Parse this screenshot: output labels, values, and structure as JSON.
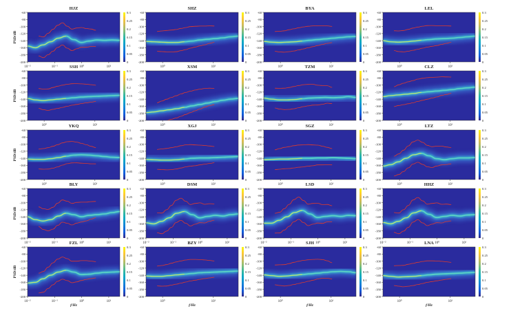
{
  "figure": {
    "ylabel": "PSD/dB",
    "xlabel": "f/Hz",
    "y_ticks": [
      "-60",
      "-80",
      "-100",
      "-120",
      "-140",
      "-160",
      "-180",
      "-200"
    ],
    "cbar_ticks": [
      "0.3",
      "0.25",
      "0.2",
      "0.15",
      "0.1",
      "0.05",
      "0"
    ],
    "colors": {
      "background": "#2a2b9e",
      "ridge": "#5fd6c4",
      "ridge_peak": "#e8e84a",
      "model_curves": "#e03a2c",
      "cbar_stops": [
        "#352a87",
        "#0f5cdd",
        "#1481d6",
        "#06a4ca",
        "#2eb7a4",
        "#87bf77",
        "#d1bb59",
        "#fec832",
        "#f9fb0e"
      ]
    }
  },
  "chart_data": [
    {
      "type": "heatmap",
      "title": "HJZ",
      "x_tick_labels": [
        "10⁻²",
        "10⁻¹",
        "10⁰",
        "10¹"
      ],
      "ylim": [
        -200,
        -60
      ],
      "ridge_db": [
        -155,
        -160,
        -152,
        -143,
        -133,
        -127,
        -137,
        -145,
        -141,
        -138,
        -139,
        -138,
        -139
      ],
      "grid": false
    },
    {
      "type": "heatmap",
      "title": "SHZ",
      "x_tick_labels": [
        "10⁰",
        "10¹"
      ],
      "ylim": [
        -200,
        -60
      ],
      "ridge_db": [
        -142,
        -143,
        -144,
        -145,
        -145,
        -143,
        -141,
        -138,
        -136,
        -134,
        -132,
        -129,
        -127
      ],
      "grid": false
    },
    {
      "type": "heatmap",
      "title": "BYA",
      "x_tick_labels": [
        "10⁰",
        "10¹"
      ],
      "ylim": [
        -200,
        -60
      ],
      "ridge_db": [
        -142,
        -144,
        -145,
        -144,
        -143,
        -141,
        -139,
        -137,
        -135,
        -133,
        -131,
        -129,
        -128
      ],
      "grid": false
    },
    {
      "type": "heatmap",
      "title": "LEL",
      "x_tick_labels": [
        "10⁰",
        "10¹"
      ],
      "ylim": [
        -200,
        -60
      ],
      "ridge_db": [
        -140,
        -143,
        -144,
        -143,
        -141,
        -139,
        -137,
        -135,
        -134,
        -133,
        -131,
        -129,
        -127
      ],
      "grid": false
    },
    {
      "type": "heatmap",
      "title": "SSH",
      "x_tick_labels": [
        "10⁰",
        "10¹"
      ],
      "ylim": [
        -200,
        -60
      ],
      "ridge_db": [
        -138,
        -142,
        -144,
        -142,
        -140,
        -138,
        -136,
        -134,
        -133,
        -132,
        -131,
        -130,
        -129
      ],
      "grid": false
    },
    {
      "type": "heatmap",
      "title": "XSM",
      "x_tick_labels": [
        "10⁰",
        "10¹"
      ],
      "ylim": [
        -200,
        -60
      ],
      "ridge_db": [
        -178,
        -176,
        -173,
        -170,
        -167,
        -163,
        -159,
        -155,
        -151,
        -147,
        -143,
        -140,
        -138
      ],
      "grid": false
    },
    {
      "type": "heatmap",
      "title": "TZM",
      "x_tick_labels": [
        "10⁰",
        "10¹"
      ],
      "ylim": [
        -200,
        -60
      ],
      "ridge_db": [
        -137,
        -140,
        -142,
        -142,
        -141,
        -139,
        -137,
        -136,
        -135,
        -136,
        -135,
        -133,
        -135
      ],
      "grid": false
    },
    {
      "type": "heatmap",
      "title": "CLZ",
      "x_tick_labels": [
        "10⁰",
        "10¹"
      ],
      "ylim": [
        -200,
        -60
      ],
      "ridge_db": [
        -133,
        -130,
        -128,
        -126,
        -124,
        -121,
        -119,
        -117,
        -115,
        -113,
        -110,
        -108,
        -106
      ],
      "grid": false
    },
    {
      "type": "heatmap",
      "title": "YKQ",
      "x_tick_labels": [
        "10⁰",
        "10¹"
      ],
      "ylim": [
        -200,
        -60
      ],
      "ridge_db": [
        -142,
        -143,
        -143,
        -141,
        -138,
        -134,
        -131,
        -130,
        -131,
        -133,
        -135,
        -137,
        -138
      ],
      "grid": false
    },
    {
      "type": "heatmap",
      "title": "XGJ",
      "x_tick_labels": [
        "10⁰",
        "10¹"
      ],
      "ylim": [
        -200,
        -60
      ],
      "ridge_db": [
        -143,
        -144,
        -145,
        -145,
        -144,
        -142,
        -140,
        -139,
        -139,
        -138,
        -137,
        -136,
        -135
      ],
      "grid": false
    },
    {
      "type": "heatmap",
      "title": "SGZ",
      "x_tick_labels": [
        "10⁰",
        "10¹"
      ],
      "ylim": [
        -200,
        -60
      ],
      "ridge_db": [
        -144,
        -143,
        -142,
        -142,
        -141,
        -140,
        -140,
        -139,
        -139,
        -138,
        -139,
        -140,
        -141
      ],
      "grid": false
    },
    {
      "type": "heatmap",
      "title": "LTZ",
      "x_tick_labels": [
        "10⁰",
        "10¹"
      ],
      "ylim": [
        -200,
        -60
      ],
      "ridge_db": [
        -162,
        -158,
        -150,
        -140,
        -130,
        -126,
        -133,
        -141,
        -144,
        -141,
        -139,
        -139,
        -138
      ],
      "grid": false
    },
    {
      "type": "heatmap",
      "title": "BLY",
      "x_tick_labels": [
        "10⁻²",
        "10⁻¹",
        "10⁰",
        "10¹"
      ],
      "ylim": [
        -200,
        -60
      ],
      "ridge_db": [
        -140,
        -148,
        -152,
        -148,
        -138,
        -130,
        -134,
        -140,
        -136,
        -134,
        -132,
        -128,
        -125
      ],
      "grid": false
    },
    {
      "type": "heatmap",
      "title": "DSM",
      "x_tick_labels": [
        "10⁻²",
        "10⁻¹",
        "10⁰",
        "10¹"
      ],
      "ylim": [
        -200,
        -60
      ],
      "ridge_db": [
        -157,
        -160,
        -153,
        -143,
        -130,
        -125,
        -134,
        -143,
        -139,
        -136,
        -138,
        -134,
        -132
      ],
      "grid": false
    },
    {
      "type": "heatmap",
      "title": "LSD",
      "x_tick_labels": [
        "10⁻²",
        "10⁻¹",
        "10⁰",
        "10¹"
      ],
      "ylim": [
        -200,
        -60
      ],
      "ridge_db": [
        -158,
        -158,
        -150,
        -140,
        -128,
        -122,
        -132,
        -142,
        -139,
        -137,
        -139,
        -136,
        -137
      ],
      "grid": false
    },
    {
      "type": "heatmap",
      "title": "HHZ",
      "x_tick_labels": [
        "10⁻²",
        "10⁻¹",
        "10⁰",
        "10¹"
      ],
      "ylim": [
        -200,
        -60
      ],
      "ridge_db": [
        -156,
        -160,
        -153,
        -143,
        -129,
        -123,
        -133,
        -142,
        -139,
        -136,
        -138,
        -135,
        -134
      ],
      "grid": false
    },
    {
      "type": "heatmap",
      "title": "FZL",
      "x_tick_labels": [
        "10⁻²",
        "10⁻¹",
        "10⁰",
        "10¹"
      ],
      "ylim": [
        -200,
        -60
      ],
      "ridge_db": [
        -162,
        -160,
        -150,
        -140,
        -131,
        -126,
        -131,
        -138,
        -137,
        -134,
        -132,
        -131,
        -130
      ],
      "grid": false
    },
    {
      "type": "heatmap",
      "title": "BZY",
      "x_tick_labels": [
        "10⁰",
        "10¹"
      ],
      "ylim": [
        -200,
        -60
      ],
      "ridge_db": [
        -142,
        -143,
        -143,
        -141,
        -139,
        -137,
        -135,
        -133,
        -132,
        -131,
        -130,
        -129,
        -128
      ],
      "grid": false
    },
    {
      "type": "heatmap",
      "title": "SJH",
      "x_tick_labels": [
        "10⁰",
        "10¹"
      ],
      "ylim": [
        -200,
        -60
      ],
      "ridge_db": [
        -139,
        -141,
        -143,
        -142,
        -140,
        -138,
        -136,
        -134,
        -132,
        -130,
        -129,
        -130,
        -133
      ],
      "grid": false
    },
    {
      "type": "heatmap",
      "title": "LNA",
      "x_tick_labels": [
        "10⁰",
        "10¹"
      ],
      "ylim": [
        -200,
        -60
      ],
      "ridge_db": [
        -141,
        -143,
        -145,
        -144,
        -143,
        -141,
        -139,
        -137,
        -136,
        -135,
        -134,
        -133,
        -132
      ],
      "grid": false
    }
  ]
}
